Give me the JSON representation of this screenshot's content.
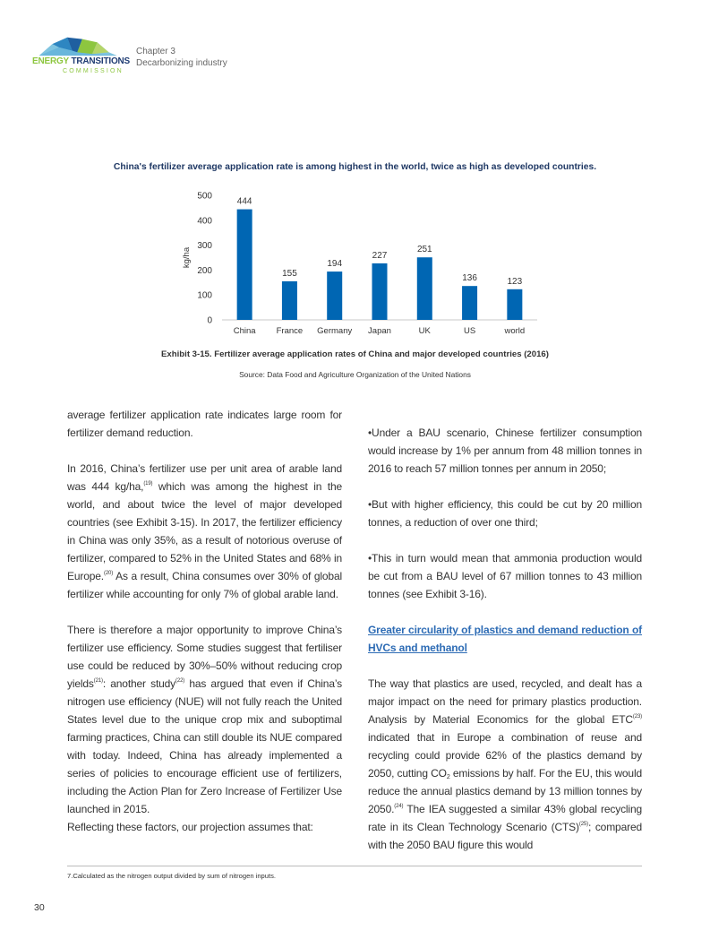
{
  "header": {
    "logo": {
      "word1": "ENERGY",
      "word2": "TRANSITIONS",
      "word3": "COMMISSION",
      "colors": {
        "green": "#8dc63f",
        "navy": "#1f3c73",
        "blue": "#2e86c1"
      }
    },
    "chapter": "Chapter 3",
    "section": "Decarbonizing industry"
  },
  "chart_data": {
    "type": "bar",
    "title": "China's fertilizer average application rate is among highest in the world, twice as high as developed countries.",
    "categories": [
      "China",
      "France",
      "Germany",
      "Japan",
      "UK",
      "US",
      "world"
    ],
    "values": [
      444,
      155,
      194,
      227,
      251,
      136,
      123
    ],
    "xlabel": "",
    "ylabel": "kg/ha",
    "ylim": [
      0,
      500
    ],
    "yticks": [
      0,
      100,
      200,
      300,
      400,
      500
    ],
    "grid": false,
    "legend": "none",
    "bar_color": "#0066b3",
    "title_color": "#1f3864"
  },
  "exhibit": {
    "caption": "Exhibit 3-15. Fertilizer average application rates of China and major developed countries (2016)",
    "source": "Source: Data Food and Agriculture Organization of the United Nations"
  },
  "left_column": {
    "p1": "average fertilizer application rate indicates large room for fertilizer demand reduction.",
    "p2": {
      "a": "In 2016, China’s fertilizer use per unit area of arable land was 444 kg/ha,",
      "sup1": "(19)",
      "b": " which was among the highest in the world, and about twice the level of major developed countries (see Exhibit 3-15). In 2017, the fertilizer efficiency in China was only 35%, as a result of notorious overuse of fertilizer, compared to 52% in the United States and 68% in Europe.",
      "sup2": "(20)",
      "c": " As a result, China consumes over 30% of global fertilizer while accounting for only 7% of global arable land."
    },
    "p3": {
      "a": "There is therefore a major opportunity to improve China’s fertilizer use efficiency. Some studies suggest that fertiliser use could be reduced by 30%–50% without reducing crop yields",
      "sup1": "(21)",
      "b": ": another study",
      "sup2": "(22)",
      "c": " has argued that even if China’s nitrogen use efficiency (NUE)  will not fully reach the United States level due to the unique crop mix and suboptimal farming practices, China can still double its NUE compared with today. Indeed, China has already implemented a series of policies to encourage efficient use of fertilizers, including the Action Plan for Zero Increase of Fertilizer Use launched in 2015."
    },
    "p4": "Reflecting these factors, our projection assumes that:"
  },
  "right_column": {
    "bullets": [
      "•Under a BAU scenario, Chinese fertilizer consumption would increase by 1% per annum from 48 million tonnes in 2016 to reach 57 million tonnes per annum in 2050;",
      "•But with higher efficiency, this could be cut by 20 million tonnes, a reduction of over one third;",
      "•This in turn would mean that ammonia production would be cut from a BAU level of 67 million tonnes to 43 million tonnes  (see Exhibit 3-16)."
    ],
    "heading": "Greater circularity of plastics and demand reduction of HVCs and methanol",
    "p1": {
      "a": "The way that plastics are used, recycled, and dealt has a major impact on the need for primary plastics production. Analysis by Material Economics for the global ETC",
      "sup1": "(23)",
      "b": " indicated that in Europe a combination of reuse and recycling could provide 62% of the plastics demand by 2050, cutting CO",
      "sub": "2",
      "c": " emissions by half. For the EU, this would reduce the annual plastics demand by 13 million tonnes by 2050.",
      "sup2": "(24)",
      "d": " The IEA suggested a similar 43% global recycling rate in its Clean Technology Scenario (CTS)",
      "sup3": "(25)",
      "e": "; compared with the 2050 BAU figure this would"
    }
  },
  "footnote": "7.Calculated as the nitrogen output divided by sum of nitrogen inputs.",
  "page_number": "30"
}
